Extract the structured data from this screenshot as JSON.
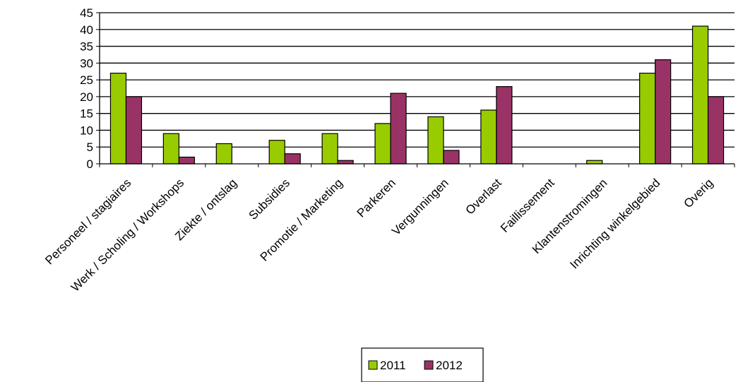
{
  "chart_data": {
    "type": "bar",
    "categories": [
      "Personeel / stagiaires",
      "Werk / Scholing / Workshops",
      "Ziekte / ontslag",
      "Subsidies",
      "Promotie / Marketing",
      "Parkeren",
      "Vergunningen",
      "Overlast",
      "Faillissement",
      "Klantenstromingen",
      "Inrichting winkelgebied",
      "Overig"
    ],
    "series": [
      {
        "name": "2011",
        "color": "#99cc00",
        "values": [
          27,
          9,
          6,
          7,
          9,
          12,
          14,
          16,
          0,
          1,
          27,
          41
        ]
      },
      {
        "name": "2012",
        "color": "#993366",
        "values": [
          20,
          2,
          0,
          3,
          1,
          21,
          4,
          23,
          0,
          0,
          31,
          20
        ]
      }
    ],
    "yticks": [
      "0",
      "5",
      "10",
      "15",
      "20",
      "25",
      "30",
      "35",
      "40",
      "45"
    ],
    "ylim": [
      0,
      45
    ],
    "grid": true,
    "legend": "bottom-center",
    "title": "",
    "xlabel": "",
    "ylabel": ""
  }
}
